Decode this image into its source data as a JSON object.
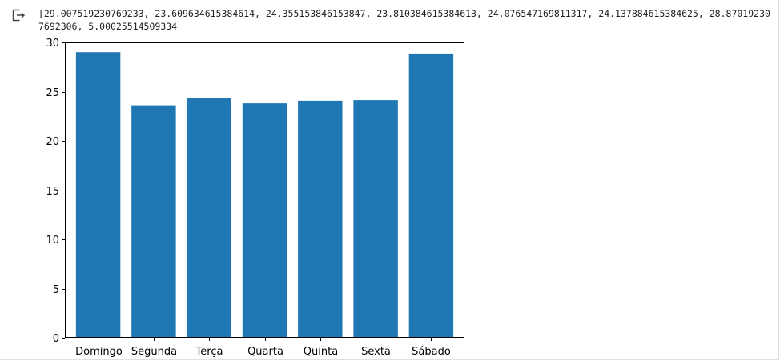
{
  "output": {
    "icon": "output-arrow-icon",
    "text": "[29.007519230769233, 23.609634615384614, 24.355153846153847, 23.810384615384613, 24.076547169811317, 24.137884615384625, 28.870192307692306, 5.00025514509334"
  },
  "chart_data": {
    "type": "bar",
    "categories": [
      "Domingo",
      "Segunda",
      "Terça",
      "Quarta",
      "Quinta",
      "Sexta",
      "Sábado"
    ],
    "values": [
      29.007519230769233,
      23.609634615384614,
      24.355153846153847,
      23.810384615384613,
      24.076547169811317,
      24.137884615384625,
      28.870192307692307
    ],
    "title": "",
    "xlabel": "",
    "ylabel": "",
    "ylim": [
      0,
      30
    ],
    "yticks": [
      "0",
      "5",
      "10",
      "15",
      "20",
      "25",
      "30"
    ],
    "bar_color": "#1f77b4",
    "grid": false
  }
}
